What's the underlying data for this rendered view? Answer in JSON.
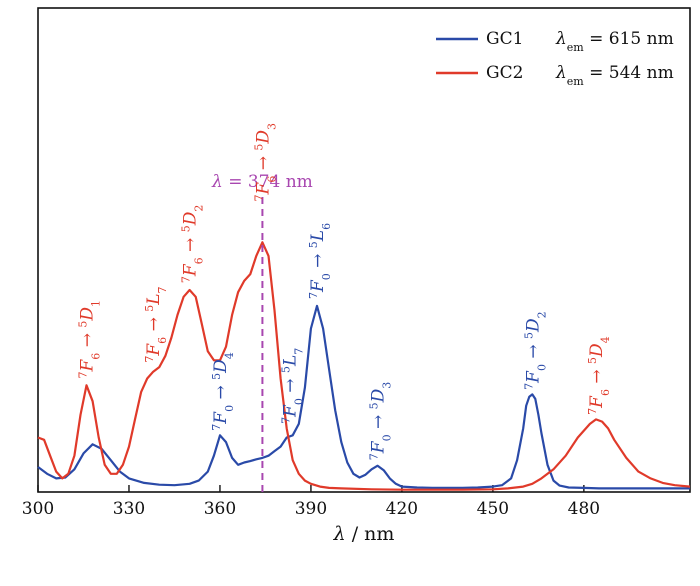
{
  "chart_data": {
    "type": "line",
    "xlabel_symbol": "λ",
    "xlabel_rest": " / nm",
    "xlim": [
      300,
      515
    ],
    "ylim": [
      0,
      1.0
    ],
    "xticks": [
      300,
      330,
      360,
      390,
      420,
      450,
      480
    ],
    "series": [
      {
        "name": "GC1",
        "legend_label": "GC1",
        "legend_em_symbol": "λ",
        "legend_em_sub": "em",
        "legend_em_value": " = 615 nm",
        "color": "#2a4aa8",
        "x": [
          300,
          303,
          306,
          309,
          312,
          315,
          318,
          321,
          324,
          327,
          330,
          335,
          340,
          345,
          350,
          353,
          356,
          358,
          360,
          362,
          364,
          366,
          368,
          370,
          372,
          374,
          376,
          378,
          380,
          382,
          384,
          386,
          388,
          390,
          392,
          394,
          396,
          398,
          400,
          402,
          404,
          406,
          408,
          410,
          412,
          414,
          416,
          418,
          420,
          425,
          430,
          435,
          440,
          445,
          450,
          453,
          456,
          458,
          460,
          461,
          462,
          463,
          464,
          465,
          466,
          468,
          470,
          472,
          475,
          480,
          485,
          490,
          495,
          500,
          505,
          510,
          515
        ],
        "values": [
          0.055,
          0.04,
          0.03,
          0.032,
          0.05,
          0.085,
          0.105,
          0.095,
          0.07,
          0.045,
          0.03,
          0.02,
          0.016,
          0.015,
          0.018,
          0.025,
          0.045,
          0.08,
          0.125,
          0.11,
          0.075,
          0.06,
          0.065,
          0.068,
          0.072,
          0.075,
          0.08,
          0.09,
          0.1,
          0.12,
          0.125,
          0.15,
          0.23,
          0.36,
          0.41,
          0.36,
          0.27,
          0.18,
          0.11,
          0.065,
          0.04,
          0.032,
          0.038,
          0.05,
          0.058,
          0.048,
          0.03,
          0.018,
          0.012,
          0.01,
          0.009,
          0.009,
          0.009,
          0.01,
          0.012,
          0.015,
          0.03,
          0.07,
          0.14,
          0.19,
          0.21,
          0.215,
          0.205,
          0.17,
          0.13,
          0.06,
          0.025,
          0.014,
          0.01,
          0.009,
          0.008,
          0.008,
          0.008,
          0.008,
          0.008,
          0.008,
          0.008
        ]
      },
      {
        "name": "GC2",
        "legend_label": "GC2",
        "legend_em_symbol": "λ",
        "legend_em_sub": "em",
        "legend_em_value": " = 544 nm",
        "color": "#e03a2a",
        "x": [
          300,
          302,
          304,
          306,
          308,
          310,
          312,
          314,
          316,
          318,
          320,
          322,
          324,
          326,
          328,
          330,
          332,
          334,
          336,
          338,
          340,
          342,
          344,
          346,
          348,
          350,
          352,
          354,
          356,
          358,
          360,
          362,
          364,
          366,
          368,
          370,
          372,
          374,
          376,
          378,
          380,
          382,
          384,
          386,
          388,
          390,
          393,
          396,
          400,
          410,
          420,
          430,
          440,
          450,
          455,
          460,
          463,
          466,
          470,
          474,
          478,
          482,
          484,
          486,
          488,
          490,
          494,
          498,
          502,
          506,
          510,
          515
        ],
        "values": [
          0.12,
          0.115,
          0.08,
          0.045,
          0.03,
          0.04,
          0.08,
          0.17,
          0.235,
          0.2,
          0.12,
          0.06,
          0.04,
          0.04,
          0.06,
          0.1,
          0.16,
          0.22,
          0.25,
          0.265,
          0.275,
          0.3,
          0.34,
          0.39,
          0.43,
          0.445,
          0.43,
          0.37,
          0.31,
          0.29,
          0.29,
          0.32,
          0.39,
          0.44,
          0.465,
          0.48,
          0.52,
          0.55,
          0.52,
          0.4,
          0.25,
          0.14,
          0.07,
          0.04,
          0.025,
          0.018,
          0.012,
          0.009,
          0.008,
          0.006,
          0.005,
          0.005,
          0.005,
          0.006,
          0.008,
          0.012,
          0.018,
          0.03,
          0.05,
          0.08,
          0.12,
          0.15,
          0.16,
          0.155,
          0.14,
          0.115,
          0.075,
          0.045,
          0.03,
          0.02,
          0.015,
          0.012
        ]
      }
    ],
    "vline": {
      "x": 374,
      "color": "#a846b0",
      "label_symbol": "λ",
      "label_rest": " = 374 nm"
    },
    "annotations_blue": [
      {
        "from": "7",
        "fromF": "F",
        "from_sub": "0",
        "to": "5",
        "toL": "D",
        "to_sub": "4",
        "x": 360,
        "y": 0.135
      },
      {
        "from": "7",
        "fromF": "F",
        "from_sub": "0",
        "to": "5",
        "toL": "L",
        "to_sub": "7",
        "x": 383,
        "y": 0.15
      },
      {
        "from": "7",
        "fromF": "F",
        "from_sub": "0",
        "to": "5",
        "toL": "L",
        "to_sub": "6",
        "x": 392,
        "y": 0.425
      },
      {
        "from": "7",
        "fromF": "F",
        "from_sub": "0",
        "to": "5",
        "toL": "D",
        "to_sub": "3",
        "x": 412,
        "y": 0.07
      },
      {
        "from": "7",
        "fromF": "F",
        "from_sub": "0",
        "to": "5",
        "toL": "D",
        "to_sub": "2",
        "x": 463,
        "y": 0.225
      }
    ],
    "annotations_red": [
      {
        "from": "7",
        "fromF": "F",
        "from_sub": "6",
        "to": "5",
        "toL": "D",
        "to_sub": "1",
        "x": 316,
        "y": 0.25
      },
      {
        "from": "7",
        "fromF": "F",
        "from_sub": "6",
        "to": "5",
        "toL": "L",
        "to_sub": "7",
        "x": 338,
        "y": 0.285
      },
      {
        "from": "7",
        "fromF": "F",
        "from_sub": "6",
        "to": "5",
        "toL": "D",
        "to_sub": "2",
        "x": 350,
        "y": 0.46
      },
      {
        "from": "7",
        "fromF": "F",
        "from_sub": "6",
        "to": "5",
        "toL": "D",
        "to_sub": "3",
        "x": 374,
        "y": 0.64
      },
      {
        "from": "7",
        "fromF": "F",
        "from_sub": "6",
        "to": "5",
        "toL": "D",
        "to_sub": "4",
        "x": 484,
        "y": 0.17
      }
    ]
  }
}
